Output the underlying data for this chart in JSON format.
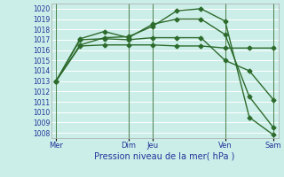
{
  "bg_color": "#cceee8",
  "grid_color": "#ffffff",
  "line_color": "#2d6b2d",
  "marker": "D",
  "marker_size": 2.5,
  "linewidth": 1.0,
  "xlabel": "Pression niveau de la mer( hPa )",
  "ylim": [
    1007.5,
    1020.5
  ],
  "yticks": [
    1008,
    1009,
    1010,
    1011,
    1012,
    1013,
    1014,
    1015,
    1016,
    1017,
    1018,
    1019,
    1020
  ],
  "xtick_labels": [
    "Mer",
    "Dim",
    "Jeu",
    "Ven",
    "Sam"
  ],
  "xtick_positions": [
    0,
    3,
    4,
    7,
    9
  ],
  "vlines": [
    0,
    3,
    4,
    7,
    9
  ],
  "series": [
    [
      1013.0,
      1016.4,
      1016.5,
      1016.5,
      1016.5,
      1016.4,
      1016.4,
      1016.2,
      1016.2,
      1016.2
    ],
    [
      1013.0,
      1017.0,
      1017.1,
      1017.0,
      1017.2,
      1017.2,
      1017.2,
      1015.0,
      1014.0,
      1011.2
    ],
    [
      1013.0,
      1017.1,
      1017.8,
      1017.2,
      1018.5,
      1019.0,
      1019.0,
      1017.5,
      1011.5,
      1008.5
    ],
    [
      1013.0,
      1016.5,
      1017.2,
      1017.3,
      1018.3,
      1019.8,
      1020.0,
      1018.8,
      1009.5,
      1007.8
    ]
  ]
}
